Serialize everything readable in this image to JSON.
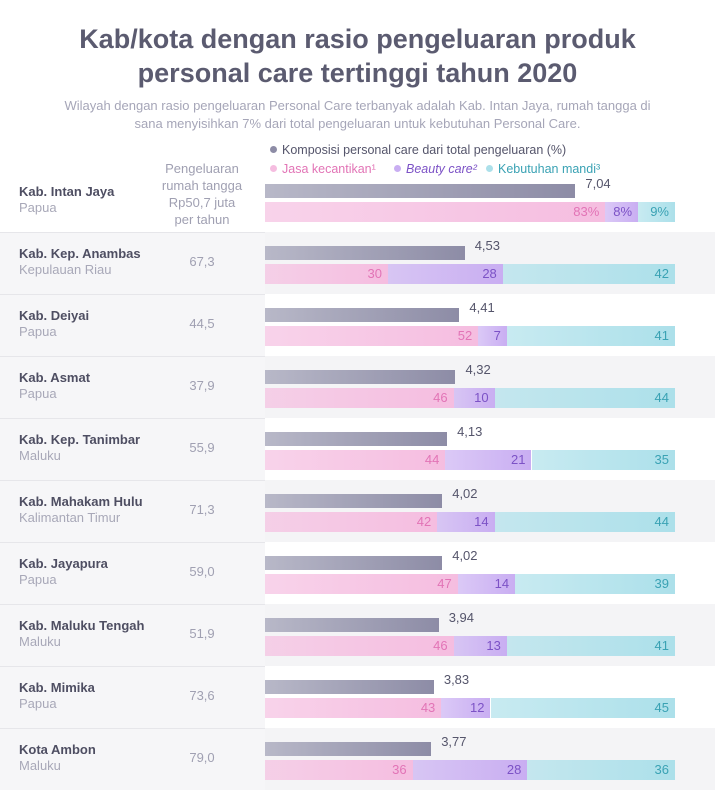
{
  "chart_data": {
    "type": "bar",
    "title": "Kab/kota dengan rasio pengeluaran produk personal care tertinggi tahun 2020",
    "subtitle": "Wilayah dengan rasio pengeluaran Personal Care terbanyak adalah Kab. Intan Jaya, rumah tangga di sana menyisihkan 7% dari total pengeluaran untuk kebutuhan Personal Care.",
    "categories": [
      "Kab. Intan Jaya",
      "Kab. Kep. Anambas",
      "Kab. Deiyai",
      "Kab. Asmat",
      "Kab. Kep. Tanimbar",
      "Kab. Mahakam Hulu",
      "Kab. Jayapura",
      "Kab. Maluku Tengah",
      "Kab. Mimika",
      "Kota Ambon"
    ],
    "regions": [
      "Papua",
      "Kepulauan Riau",
      "Papua",
      "Papua",
      "Maluku",
      "Kalimantan Timur",
      "Papua",
      "Maluku",
      "Papua",
      "Maluku"
    ],
    "spending_header": "Pengeluaran rumah tangga Rp50,7 juta per tahun",
    "spending": [
      null,
      67.3,
      44.5,
      37.9,
      55.9,
      71.3,
      59.0,
      51.9,
      73.6,
      79.0
    ],
    "spending_labels": [
      null,
      "67,3",
      "44,5",
      "37,9",
      "55,9",
      "71,3",
      "59,0",
      "51,9",
      "73,6",
      "79,0"
    ],
    "xlim": [
      0,
      9.3
    ],
    "series": [
      {
        "name": "Komposisi personal care dari total pengeluaran (%)",
        "color": "#8d8ca6",
        "values": [
          7.04,
          4.53,
          4.41,
          4.32,
          4.13,
          4.02,
          4.02,
          3.94,
          3.83,
          3.77
        ],
        "value_labels": [
          "7,04",
          "4,53",
          "4,41",
          "4,32",
          "4,13",
          "4,02",
          "4,02",
          "3,94",
          "3,83",
          "3,77"
        ]
      }
    ],
    "stack": {
      "xlim": [
        0,
        100
      ],
      "series": [
        {
          "name": "Jasa kecantikan¹",
          "color": "#f5bde0",
          "values": [
            83,
            30,
            52,
            46,
            44,
            42,
            47,
            46,
            43,
            36
          ],
          "value_labels": [
            "83%",
            "30",
            "52",
            "46",
            "44",
            "42",
            "47",
            "46",
            "43",
            "36"
          ]
        },
        {
          "name": "Beauty care²",
          "color": "#c9aef2",
          "values": [
            8,
            28,
            7,
            10,
            21,
            14,
            14,
            13,
            12,
            28
          ],
          "value_labels": [
            "8%",
            "28",
            "7",
            "10",
            "21",
            "14",
            "14",
            "13",
            "12",
            "28"
          ]
        },
        {
          "name": "Kebutuhan mandi³",
          "color": "#ace0ea",
          "values": [
            9,
            42,
            41,
            44,
            35,
            44,
            39,
            41,
            45,
            36
          ],
          "value_labels": [
            "9%",
            "42",
            "41",
            "44",
            "35",
            "44",
            "39",
            "41",
            "45",
            "36"
          ]
        }
      ]
    }
  }
}
